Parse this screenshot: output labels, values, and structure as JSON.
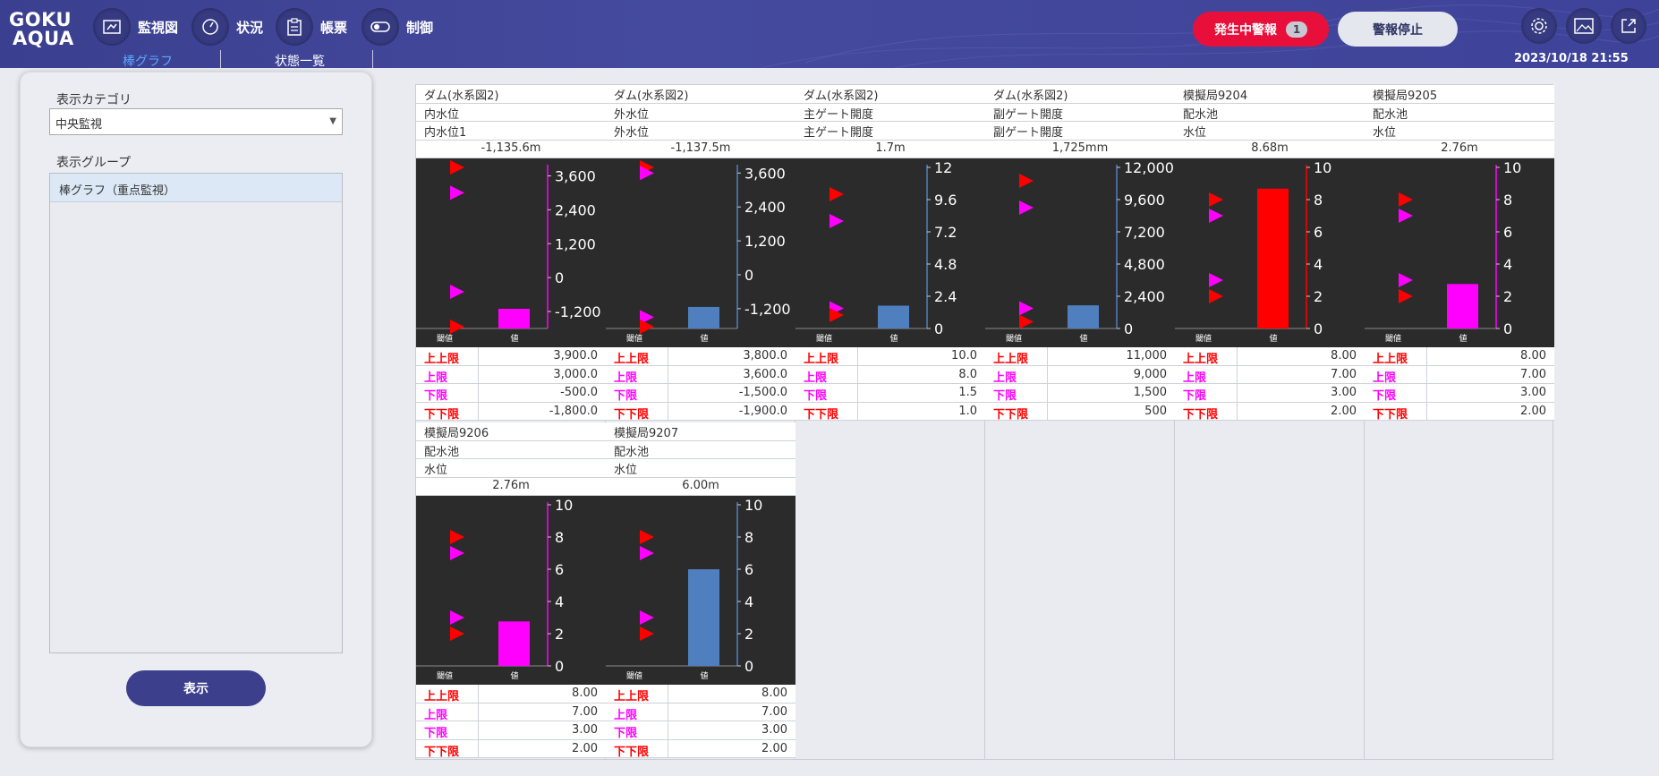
{
  "app": {
    "logo_line1": "GOKU",
    "logo_line2": "AQUA"
  },
  "nav": [
    {
      "label": "監視図",
      "icon": "monitor-map-icon"
    },
    {
      "label": "状況",
      "icon": "gauge-icon"
    },
    {
      "label": "帳票",
      "icon": "clipboard-icon"
    },
    {
      "label": "制御",
      "icon": "toggle-control-icon"
    }
  ],
  "subtabs": {
    "bar_graph": "棒グラフ",
    "status_list": "状態一覧"
  },
  "alarm": {
    "label": "発生中警報",
    "count": "1",
    "stop_label": "警報停止"
  },
  "datetime": "2023/10/18 21:55",
  "colors": {
    "accent": "#3c3f8c",
    "alarm": "#e8103a",
    "over_limit": "#ff0000",
    "warn_limit": "#ff00ff",
    "normal_bar": "#4f7fbf",
    "chart_bg": "#2b2b2b"
  },
  "sidebar": {
    "category_label": "表示カテゴリ",
    "category_value": "中央監視",
    "group_label": "表示グループ",
    "groups": [
      "棒グラフ（重点監視）"
    ],
    "show_button": "表示"
  },
  "limit_labels": [
    "上上限",
    "上限",
    "下限",
    "下下限"
  ],
  "axis_labels": {
    "threshold": "閾値",
    "value": "値"
  },
  "panels": [
    {
      "name": "ダム(水系図2)",
      "sub1": "内水位",
      "sub2": "内水位1",
      "value_text": "-1,135.6m",
      "limits": [
        "3,900.0",
        "3,000.0",
        "-500.0",
        "-1,800.0"
      ],
      "chart_data": {
        "type": "bar",
        "value": -1135.6,
        "bar_state": "warn",
        "ticks": [
          "3,600",
          "2,400",
          "1,200",
          "0",
          "-1,200"
        ],
        "tick_values": [
          3600,
          2400,
          1200,
          0,
          -1200
        ],
        "ylim": [
          -1800,
          3900
        ],
        "thresholds": [
          3900,
          3000,
          -500,
          -1800
        ]
      }
    },
    {
      "name": "ダム(水系図2)",
      "sub1": "外水位",
      "sub2": "外水位",
      "value_text": "-1,137.5m",
      "limits": [
        "3,800.0",
        "3,600.0",
        "-1,500.0",
        "-1,900.0"
      ],
      "chart_data": {
        "type": "bar",
        "value": -1137.5,
        "bar_state": "normal",
        "ticks": [
          "3,600",
          "2,400",
          "1,200",
          "0",
          "-1,200"
        ],
        "tick_values": [
          3600,
          2400,
          1200,
          0,
          -1200
        ],
        "ylim": [
          -1900,
          3800
        ],
        "thresholds": [
          3800,
          3600,
          -1500,
          -1900
        ]
      }
    },
    {
      "name": "ダム(水系図2)",
      "sub1": "主ゲート開度",
      "sub2": "主ゲート開度",
      "value_text": "1.7m",
      "limits": [
        "10.0",
        "8.0",
        "1.5",
        "1.0"
      ],
      "chart_data": {
        "type": "bar",
        "value": 1.7,
        "bar_state": "normal",
        "ticks": [
          "12",
          "9.6",
          "7.2",
          "4.8",
          "2.4",
          "0"
        ],
        "tick_values": [
          12,
          9.6,
          7.2,
          4.8,
          2.4,
          0
        ],
        "ylim": [
          0,
          12
        ],
        "thresholds": [
          10,
          8,
          1.5,
          1
        ]
      }
    },
    {
      "name": "ダム(水系図2)",
      "sub1": "副ゲート開度",
      "sub2": "副ゲート開度",
      "value_text": "1,725mm",
      "limits": [
        "11,000",
        "9,000",
        "1,500",
        "500"
      ],
      "chart_data": {
        "type": "bar",
        "value": 1725,
        "bar_state": "normal",
        "ticks": [
          "12,000",
          "9,600",
          "7,200",
          "4,800",
          "2,400",
          "0"
        ],
        "tick_values": [
          12000,
          9600,
          7200,
          4800,
          2400,
          0
        ],
        "ylim": [
          0,
          12000
        ],
        "thresholds": [
          11000,
          9000,
          1500,
          500
        ]
      }
    },
    {
      "name": "模擬局9204",
      "sub1": "配水池",
      "sub2": "水位",
      "value_text": "8.68m",
      "limits": [
        "8.00",
        "7.00",
        "3.00",
        "2.00"
      ],
      "chart_data": {
        "type": "bar",
        "value": 8.68,
        "bar_state": "alarm",
        "ticks": [
          "10",
          "8",
          "6",
          "4",
          "2",
          "0"
        ],
        "tick_values": [
          10,
          8,
          6,
          4,
          2,
          0
        ],
        "ylim": [
          0,
          10
        ],
        "thresholds": [
          8,
          7,
          3,
          2
        ]
      }
    },
    {
      "name": "模擬局9205",
      "sub1": "配水池",
      "sub2": "水位",
      "value_text": "2.76m",
      "limits": [
        "8.00",
        "7.00",
        "3.00",
        "2.00"
      ],
      "chart_data": {
        "type": "bar",
        "value": 2.76,
        "bar_state": "warn",
        "ticks": [
          "10",
          "8",
          "6",
          "4",
          "2",
          "0"
        ],
        "tick_values": [
          10,
          8,
          6,
          4,
          2,
          0
        ],
        "ylim": [
          0,
          10
        ],
        "thresholds": [
          8,
          7,
          3,
          2
        ]
      }
    },
    {
      "name": "模擬局9206",
      "sub1": "配水池",
      "sub2": "水位",
      "value_text": "2.76m",
      "limits": [
        "8.00",
        "7.00",
        "3.00",
        "2.00"
      ],
      "chart_data": {
        "type": "bar",
        "value": 2.76,
        "bar_state": "warn",
        "ticks": [
          "10",
          "8",
          "6",
          "4",
          "2",
          "0"
        ],
        "tick_values": [
          10,
          8,
          6,
          4,
          2,
          0
        ],
        "ylim": [
          0,
          10
        ],
        "thresholds": [
          8,
          7,
          3,
          2
        ]
      }
    },
    {
      "name": "模擬局9207",
      "sub1": "配水池",
      "sub2": "水位",
      "value_text": "6.00m",
      "limits": [
        "8.00",
        "7.00",
        "3.00",
        "2.00"
      ],
      "chart_data": {
        "type": "bar",
        "value": 6.0,
        "bar_state": "normal",
        "ticks": [
          "10",
          "8",
          "6",
          "4",
          "2",
          "0"
        ],
        "tick_values": [
          10,
          8,
          6,
          4,
          2,
          0
        ],
        "ylim": [
          0,
          10
        ],
        "thresholds": [
          8,
          7,
          3,
          2
        ]
      }
    }
  ]
}
